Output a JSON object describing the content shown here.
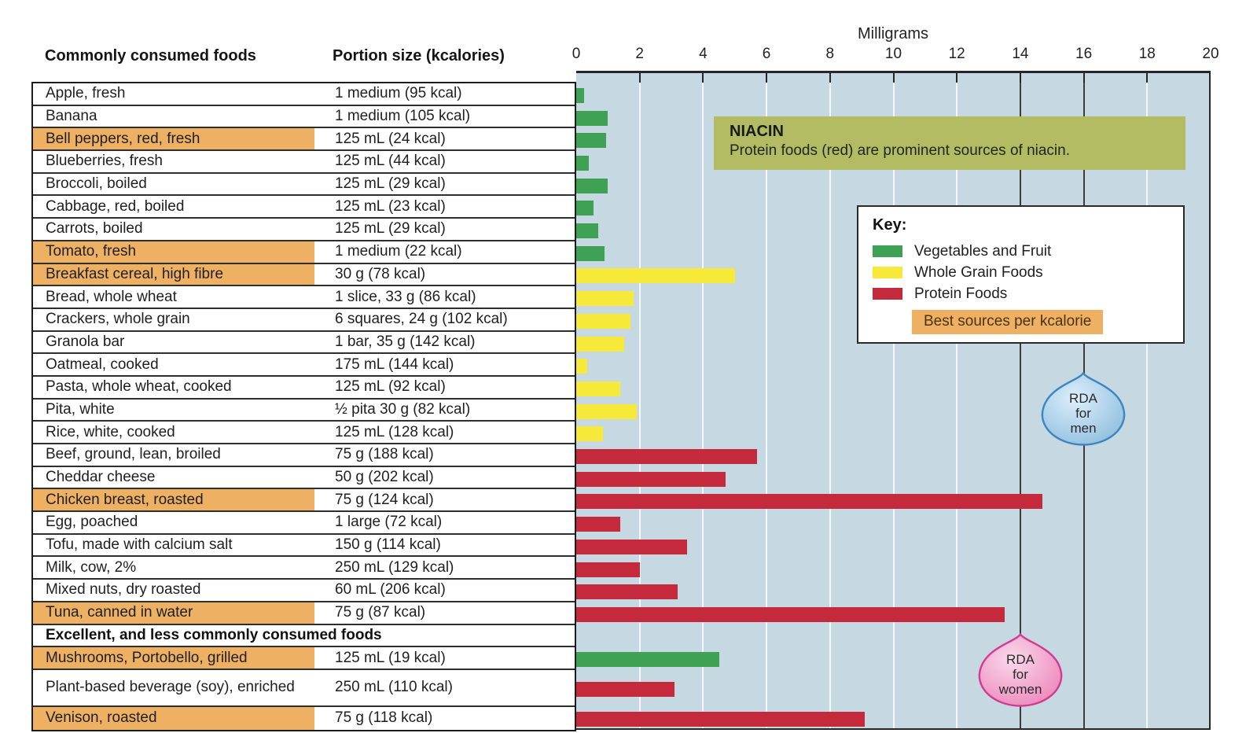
{
  "table": {
    "header_food": "Commonly consumed foods",
    "header_portion": "Portion size (kcalories)",
    "section_header": "Excellent, and less commonly consumed foods",
    "highlight_color": "#eeb163"
  },
  "chart": {
    "axis_title": "Milligrams",
    "axis_ticks": [
      "0",
      "2",
      "4",
      "6",
      "8",
      "10",
      "12",
      "14",
      "16",
      "18",
      "20"
    ],
    "bg_color": "#c6d9e2",
    "group_colors": {
      "vegetables": "#3fa153",
      "grain": "#f7e93a",
      "protein": "#c4293c"
    }
  },
  "callout": {
    "title": "NIACIN",
    "text": "Protein foods (red) are prominent sources of niacin."
  },
  "key": {
    "title": "Key:",
    "items": [
      {
        "label": "Vegetables and Fruit",
        "color": "#3fa153"
      },
      {
        "label": "Whole Grain Foods",
        "color": "#f7e93a"
      },
      {
        "label": "Protein Foods",
        "color": "#c4293c"
      }
    ],
    "badge": "Best sources per kcalorie"
  },
  "markers": {
    "men": {
      "lines": [
        "RDA",
        "for",
        "men"
      ],
      "value_mg": 16
    },
    "women": {
      "lines": [
        "RDA",
        "for",
        "women"
      ],
      "value_mg": 14
    }
  },
  "chart_data": {
    "type": "bar",
    "orientation": "horizontal",
    "unit": "milligrams niacin",
    "xlabel": "Milligrams",
    "xlim": [
      0,
      20
    ],
    "tick_step": 2,
    "rda_lines": {
      "women_mg": 14,
      "men_mg": 16
    },
    "legend_position": "upper right",
    "rows": [
      {
        "food": "Apple, fresh",
        "portion": "1 medium (95 kcal)",
        "value": 0.25,
        "group": "vegetables",
        "highlight": false
      },
      {
        "food": "Banana",
        "portion": "1 medium (105 kcal)",
        "value": 1.0,
        "group": "vegetables",
        "highlight": false
      },
      {
        "food": "Bell peppers, red, fresh",
        "portion": "125 mL (24 kcal)",
        "value": 0.95,
        "group": "vegetables",
        "highlight": true
      },
      {
        "food": "Blueberries, fresh",
        "portion": "125 mL (44 kcal)",
        "value": 0.4,
        "group": "vegetables",
        "highlight": false
      },
      {
        "food": "Broccoli, boiled",
        "portion": "125 mL (29 kcal)",
        "value": 1.0,
        "group": "vegetables",
        "highlight": false
      },
      {
        "food": "Cabbage, red, boiled",
        "portion": "125 mL (23 kcal)",
        "value": 0.55,
        "group": "vegetables",
        "highlight": false
      },
      {
        "food": "Carrots, boiled",
        "portion": "125 mL (29 kcal)",
        "value": 0.7,
        "group": "vegetables",
        "highlight": false
      },
      {
        "food": "Tomato, fresh",
        "portion": "1 medium (22 kcal)",
        "value": 0.9,
        "group": "vegetables",
        "highlight": true
      },
      {
        "food": "Breakfast cereal, high fibre",
        "portion": "30 g (78 kcal)",
        "value": 5.0,
        "group": "grain",
        "highlight": true
      },
      {
        "food": "Bread, whole wheat",
        "portion": "1 slice, 33 g (86 kcal)",
        "value": 1.8,
        "group": "grain",
        "highlight": false
      },
      {
        "food": "Crackers, whole grain",
        "portion": "6 squares, 24 g (102 kcal)",
        "value": 1.7,
        "group": "grain",
        "highlight": false
      },
      {
        "food": "Granola bar",
        "portion": "1 bar, 35 g (142 kcal)",
        "value": 1.5,
        "group": "grain",
        "highlight": false
      },
      {
        "food": "Oatmeal, cooked",
        "portion": "175 mL (144 kcal)",
        "value": 0.35,
        "group": "grain",
        "highlight": false
      },
      {
        "food": "Pasta, whole wheat, cooked",
        "portion": "125 mL (92 kcal)",
        "value": 1.4,
        "group": "grain",
        "highlight": false
      },
      {
        "food": "Pita, white",
        "portion": "½ pita 30 g (82 kcal)",
        "value": 1.9,
        "group": "grain",
        "highlight": false
      },
      {
        "food": "Rice, white, cooked",
        "portion": "125 mL (128 kcal)",
        "value": 0.85,
        "group": "grain",
        "highlight": false
      },
      {
        "food": "Beef, ground, lean, broiled",
        "portion": "75 g (188 kcal)",
        "value": 5.7,
        "group": "protein",
        "highlight": false
      },
      {
        "food": "Cheddar cheese",
        "portion": "50 g (202 kcal)",
        "value": 4.7,
        "group": "protein",
        "highlight": false
      },
      {
        "food": "Chicken breast, roasted",
        "portion": "75 g (124 kcal)",
        "value": 14.7,
        "group": "protein",
        "highlight": true
      },
      {
        "food": "Egg, poached",
        "portion": "1 large (72 kcal)",
        "value": 1.4,
        "group": "protein",
        "highlight": false
      },
      {
        "food": "Tofu, made with calcium salt",
        "portion": "150 g (114 kcal)",
        "value": 3.5,
        "group": "protein",
        "highlight": false
      },
      {
        "food": "Milk, cow, 2%",
        "portion": "250 mL (129 kcal)",
        "value": 2.0,
        "group": "protein",
        "highlight": false
      },
      {
        "food": "Mixed nuts, dry roasted",
        "portion": "60 mL (206 kcal)",
        "value": 3.2,
        "group": "protein",
        "highlight": false
      },
      {
        "food": "Tuna, canned in water",
        "portion": "75 g (87 kcal)",
        "value": 13.5,
        "group": "protein",
        "highlight": true
      },
      {
        "type": "section",
        "food": "Excellent, and less commonly consumed foods"
      },
      {
        "food": "Mushrooms, Portobello, grilled",
        "portion": "125 mL (19 kcal)",
        "value": 4.5,
        "group": "vegetables",
        "highlight": true
      },
      {
        "food": "Plant-based beverage (soy), enriched",
        "portion": "250 mL (110 kcal)",
        "value": 3.1,
        "group": "protein",
        "highlight": false,
        "tall": true
      },
      {
        "food": "Venison, roasted",
        "portion": "75 g (118 kcal)",
        "value": 9.1,
        "group": "protein",
        "highlight": true
      }
    ]
  }
}
